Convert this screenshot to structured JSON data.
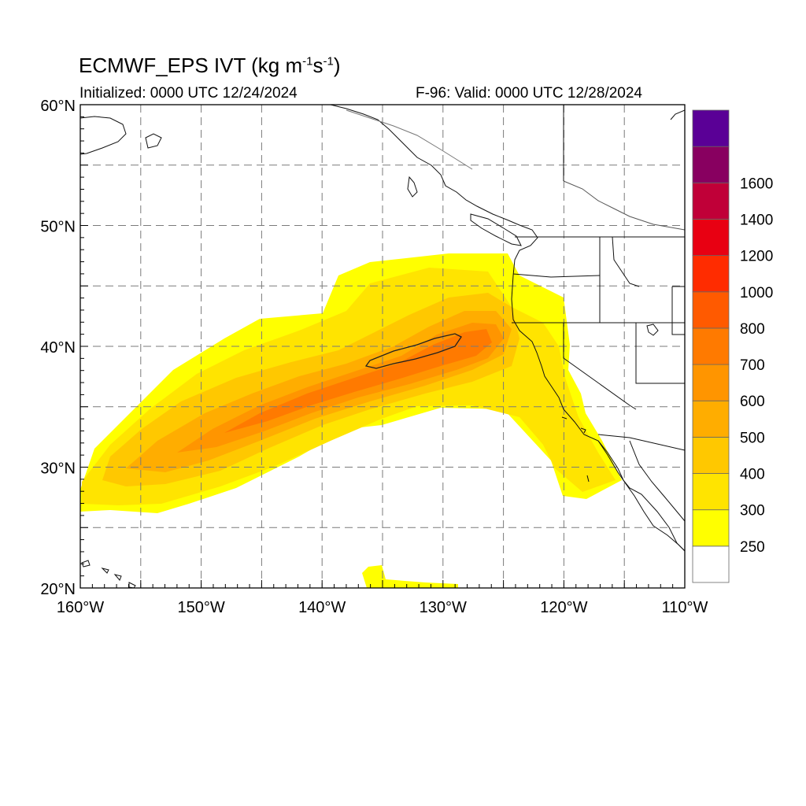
{
  "title": {
    "model": "ECMWF_EPS",
    "variable": "IVT",
    "units_open": "(kg m",
    "exp1": "-1",
    "units_mid": "s",
    "exp2": "-1",
    "units_close": ")"
  },
  "subtitle_left": "Initialized: 0000 UTC 12/24/2024",
  "subtitle_right": "F-96: Valid: 0000 UTC 12/28/2024",
  "map": {
    "lon_range": [
      -160,
      -110
    ],
    "lat_range": [
      20,
      60
    ],
    "lon_tick_labels": [
      "160°W",
      "150°W",
      "140°W",
      "130°W",
      "120°W",
      "110°W"
    ],
    "lat_tick_labels": [
      "20°N",
      "30°N",
      "40°N",
      "50°N",
      "60°N"
    ],
    "lon_ticks": [
      -160,
      -150,
      -140,
      -130,
      -120,
      -110
    ],
    "lat_ticks": [
      20,
      30,
      40,
      50,
      60
    ],
    "gridlines": "dashed every 5 degrees"
  },
  "colorbar": {
    "labels": [
      "250",
      "300",
      "400",
      "500",
      "600",
      "700",
      "800",
      "1000",
      "1200",
      "1400",
      "1600"
    ],
    "colors": [
      "#ffffff",
      "#ffff00",
      "#ffe400",
      "#ffc800",
      "#ffad00",
      "#ff9500",
      "#ff7a00",
      "#ff5a00",
      "#ff2c00",
      "#e80012",
      "#c00038",
      "#880060",
      "#5a0096"
    ]
  },
  "ivt_field": {
    "description_levels": "IVT shading, kg m-1 s-1",
    "core_max_contour": 800,
    "features": [
      {
        "name": "main atmospheric river",
        "from": [
          -160,
          28
        ],
        "to": [
          -124,
          44
        ]
      },
      {
        "name": "southern patch",
        "center": [
          -133,
          21
        ]
      }
    ]
  }
}
